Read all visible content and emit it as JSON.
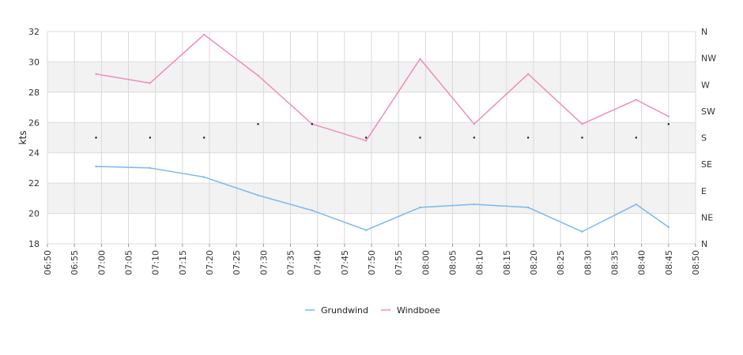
{
  "chart_data": {
    "type": "line",
    "ylabel": "kts",
    "ylim": [
      18,
      32
    ],
    "y_ticks": [
      "18",
      "20",
      "22",
      "24",
      "26",
      "28",
      "30",
      "32"
    ],
    "x_ticks": [
      "06:50",
      "06:55",
      "07:00",
      "07:05",
      "07:10",
      "07:15",
      "07:20",
      "07:25",
      "07:30",
      "07:35",
      "07:40",
      "07:45",
      "07:50",
      "07:55",
      "08:00",
      "08:05",
      "08:10",
      "08:15",
      "08:20",
      "08:25",
      "08:30",
      "08:35",
      "08:40",
      "08:45",
      "08:50"
    ],
    "xlim": [
      "06:50",
      "08:50"
    ],
    "y2_ticks": [
      "N",
      "NE",
      "E",
      "SE",
      "S",
      "SW",
      "W",
      "NW",
      "N"
    ],
    "y2lim": [
      0,
      360
    ],
    "grid": true,
    "band_color": "#f2f2f2",
    "legend_position": "bottom-center",
    "series": [
      {
        "name": "Grundwind",
        "color": "#7ab8f0",
        "x": [
          "06:59",
          "07:09",
          "07:19",
          "07:29",
          "07:39",
          "07:49",
          "07:59",
          "08:09",
          "08:19",
          "08:29",
          "08:39",
          "08:45"
        ],
        "values": [
          23.1,
          23.0,
          22.4,
          21.2,
          20.2,
          18.9,
          20.4,
          20.6,
          20.4,
          18.8,
          20.6,
          19.1
        ]
      },
      {
        "name": "Windboee",
        "color": "#f08cbe",
        "x": [
          "06:59",
          "07:09",
          "07:19",
          "07:29",
          "07:39",
          "07:49",
          "07:59",
          "08:09",
          "08:19",
          "08:29",
          "08:39",
          "08:45"
        ],
        "values": [
          29.2,
          28.6,
          31.8,
          29.1,
          25.9,
          24.8,
          30.2,
          25.9,
          29.2,
          25.9,
          27.5,
          26.4
        ]
      }
    ],
    "direction": {
      "color": "#111111",
      "x": [
        "06:59",
        "07:09",
        "07:19",
        "07:29",
        "07:39",
        "07:49",
        "07:59",
        "08:09",
        "08:19",
        "08:29",
        "08:39",
        "08:45"
      ],
      "degrees": [
        180,
        180,
        180,
        203,
        203,
        180,
        180,
        180,
        180,
        180,
        180,
        203
      ]
    }
  }
}
